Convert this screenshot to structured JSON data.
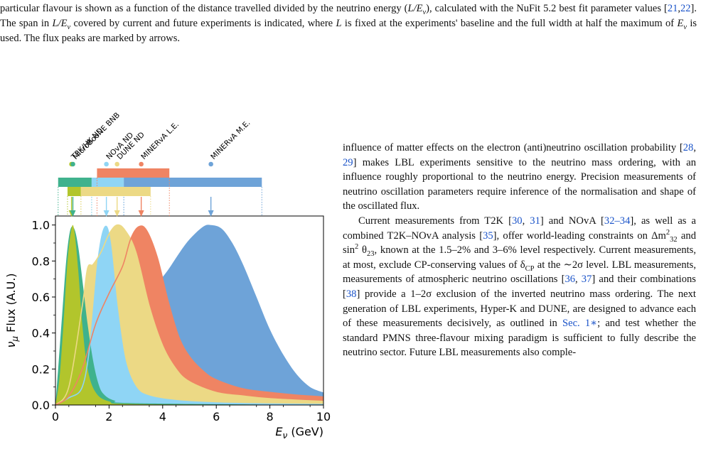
{
  "caption": {
    "seg1": "particular flavour is shown as a function of the distance travelled divided by the neutrino energy (",
    "seg2": "), calculated with the NuFit 5.2 best fit parameter values [",
    "ref_a": "21",
    "ref_b": "22",
    "seg3": "]. The span in ",
    "seg4": " covered by current and future experiments is indicated, where ",
    "seg5": " is fixed at the experiments' baseline and the full width at half the maximum of ",
    "seg6": " is used. The flux peaks are marked by arrows.",
    "LE_symbol": "L/E",
    "L_symbol": "L",
    "E_symbol": "E",
    "nu": "ν"
  },
  "body": {
    "p1": "influence of matter effects on the electron (anti)neutrino oscillation probability [",
    "ref_28": "28",
    "ref_29": "29",
    "p1b": "] makes LBL experiments sensitive to the neutrino mass ordering, with an influence roughly proportional to the neutrino energy. Precision measurements of neutrino oscillation parameters require inference of the normalisation and shape of the oscillated flux.",
    "p2a": "Current measurements from T2K [",
    "ref_30": "30",
    "ref_31": "31",
    "p2b": "] and NOvA [",
    "ref_32_34": "32–34",
    "p2c": "], as well as a combined T2K–NOvA analysis [",
    "ref_35": "35",
    "p2d": "], offer world-leading constraints on Δm",
    "p2e": " and sin",
    "p2f": " θ",
    "p2g": ", known at the 1.5–2% and 3–6% level respectively. Current measurements, at most, exclude CP-conserving values of δ",
    "p2h": " at the ∼2σ level. LBL measurements, measurements of atmospheric neutrino oscillations [",
    "ref_36": "36",
    "ref_37": "37",
    "p2i": "] and their combinations [",
    "ref_38": "38",
    "p2j": "] provide a 1–2σ exclusion of the inverted neutrino mass ordering. The next generation of LBL experiments, Hyper-K and DUNE, are designed to advance each of these measurements decisively, as outlined in ",
    "sec_ref": "Sec. 1∗",
    "p2k": "; and test whether the standard PMNS three-flavour mixing paradigm is sufficient to fully describe the neutrino sector. Future LBL measurements also comple-",
    "sub_32": "32",
    "sup_2": "2",
    "sub_23": "23",
    "sub_CP": "CP"
  },
  "chart_data": {
    "type": "area",
    "xlabel_main": "E",
    "xlabel_sub": "ν",
    "xlabel_unit": " (GeV)",
    "ylabel": "ν",
    "ylabel_sub": "μ",
    "ylabel_rest": " Flux (A.U.)",
    "xlim": [
      0,
      10
    ],
    "ylim": [
      0,
      1.05
    ],
    "xticks": [
      0,
      2,
      4,
      6,
      8,
      10
    ],
    "yticks": [
      0.0,
      0.2,
      0.4,
      0.6,
      0.8,
      1.0
    ],
    "series": [
      {
        "name": "T2K/HK ND",
        "color": "#b2c52c",
        "peak": 0.6,
        "points": [
          [
            0,
            0
          ],
          [
            0.15,
            0.15
          ],
          [
            0.3,
            0.45
          ],
          [
            0.45,
            0.8
          ],
          [
            0.6,
            0.98
          ],
          [
            0.7,
            0.97
          ],
          [
            0.85,
            0.75
          ],
          [
            1.0,
            0.45
          ],
          [
            1.2,
            0.2
          ],
          [
            1.5,
            0.07
          ],
          [
            2,
            0.02
          ],
          [
            3,
            0.005
          ],
          [
            10,
            0
          ]
        ]
      },
      {
        "name": "MicroBooNE BNB",
        "color": "#3fb28d",
        "peak": 0.65,
        "points": [
          [
            0,
            0
          ],
          [
            0.1,
            0.2
          ],
          [
            0.25,
            0.5
          ],
          [
            0.4,
            0.8
          ],
          [
            0.55,
            0.97
          ],
          [
            0.7,
            0.98
          ],
          [
            0.85,
            0.88
          ],
          [
            1.0,
            0.7
          ],
          [
            1.2,
            0.45
          ],
          [
            1.4,
            0.25
          ],
          [
            1.6,
            0.12
          ],
          [
            1.8,
            0.06
          ],
          [
            2.2,
            0.025
          ],
          [
            3,
            0.01
          ],
          [
            10,
            0
          ]
        ]
      },
      {
        "name": "NOvA ND",
        "color": "#8fd5f5",
        "peak": 1.9,
        "points": [
          [
            0,
            0
          ],
          [
            0.5,
            0.04
          ],
          [
            1.0,
            0.1
          ],
          [
            1.3,
            0.35
          ],
          [
            1.6,
            0.82
          ],
          [
            1.85,
            0.99
          ],
          [
            2.05,
            0.9
          ],
          [
            2.3,
            0.55
          ],
          [
            2.6,
            0.25
          ],
          [
            3.0,
            0.1
          ],
          [
            3.5,
            0.05
          ],
          [
            4.5,
            0.025
          ],
          [
            6,
            0.012
          ],
          [
            8,
            0.006
          ],
          [
            10,
            0.003
          ]
        ]
      },
      {
        "name": "DUNE ND",
        "color": "#ecd985",
        "peak": 2.3,
        "points": [
          [
            0,
            0
          ],
          [
            0.5,
            0.1
          ],
          [
            1.0,
            0.55
          ],
          [
            1.2,
            0.76
          ],
          [
            1.4,
            0.78
          ],
          [
            1.7,
            0.85
          ],
          [
            2.0,
            0.95
          ],
          [
            2.3,
            1.0
          ],
          [
            2.6,
            0.97
          ],
          [
            3.0,
            0.85
          ],
          [
            3.5,
            0.55
          ],
          [
            4.0,
            0.33
          ],
          [
            4.5,
            0.2
          ],
          [
            5.0,
            0.13
          ],
          [
            6.0,
            0.07
          ],
          [
            7.0,
            0.05
          ],
          [
            8.0,
            0.035
          ],
          [
            10,
            0.02
          ]
        ]
      },
      {
        "name": "MINERvA L.E.",
        "color": "#ef8463",
        "peak": 3.2,
        "points": [
          [
            0,
            0
          ],
          [
            0.5,
            0.05
          ],
          [
            1.0,
            0.2
          ],
          [
            1.5,
            0.45
          ],
          [
            2.0,
            0.62
          ],
          [
            2.5,
            0.77
          ],
          [
            2.8,
            0.92
          ],
          [
            3.1,
            0.99
          ],
          [
            3.4,
            0.97
          ],
          [
            3.8,
            0.82
          ],
          [
            4.2,
            0.58
          ],
          [
            4.6,
            0.38
          ],
          [
            5.0,
            0.27
          ],
          [
            5.5,
            0.19
          ],
          [
            6.0,
            0.14
          ],
          [
            7.0,
            0.09
          ],
          [
            8.0,
            0.07
          ],
          [
            9.0,
            0.055
          ],
          [
            10,
            0.045
          ]
        ]
      },
      {
        "name": "MINERvA M.E.",
        "color": "#6ea3d8",
        "peak": 5.8,
        "points": [
          [
            0,
            0
          ],
          [
            0.3,
            0.02
          ],
          [
            0.7,
            0.04
          ],
          [
            1.2,
            0.05
          ],
          [
            1.8,
            0.07
          ],
          [
            2.5,
            0.16
          ],
          [
            3.0,
            0.35
          ],
          [
            3.4,
            0.56
          ],
          [
            3.8,
            0.67
          ],
          [
            4.2,
            0.75
          ],
          [
            4.6,
            0.84
          ],
          [
            5.0,
            0.92
          ],
          [
            5.5,
            0.99
          ],
          [
            5.8,
            1.0
          ],
          [
            6.2,
            0.98
          ],
          [
            6.6,
            0.9
          ],
          [
            7.0,
            0.78
          ],
          [
            7.5,
            0.6
          ],
          [
            8.0,
            0.42
          ],
          [
            8.5,
            0.28
          ],
          [
            9.0,
            0.17
          ],
          [
            9.5,
            0.1
          ],
          [
            10,
            0.07
          ]
        ]
      }
    ],
    "spans": [
      {
        "name": "MicroBooNE BNB",
        "color": "#3fb28d",
        "x0": 0.1,
        "x1": 1.35,
        "row": 0
      },
      {
        "name": "NOvA ND",
        "color": "#8fd5f5",
        "x0": 1.35,
        "x1": 2.55,
        "row": 0
      },
      {
        "name": "MINERvA M.E.",
        "color": "#6ea3d8",
        "x0": 2.55,
        "x1": 7.7,
        "row": 0
      },
      {
        "name": "MINERvA L.E.",
        "color": "#ef8463",
        "x0": 1.55,
        "x1": 4.25,
        "row": -1
      },
      {
        "name": "T2K/HK ND",
        "color": "#b2c52c",
        "x0": 0.45,
        "x1": 0.95,
        "row": 1
      },
      {
        "name": "DUNE ND",
        "color": "#ecd985",
        "x0": 0.95,
        "x1": 3.55,
        "row": 1
      }
    ]
  }
}
